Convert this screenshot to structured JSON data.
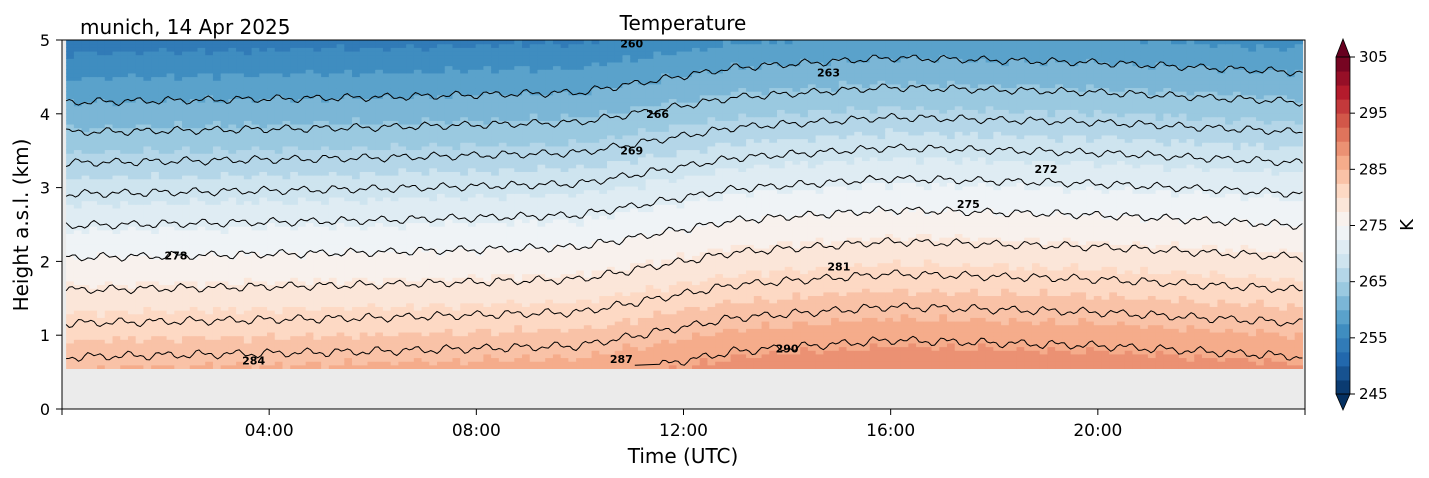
{
  "chart_data": {
    "type": "heatmap",
    "title": "Temperature",
    "subtitle": "munich, 14 Apr 2025",
    "xlabel": "Time (UTC)",
    "ylabel": "Height a.s.l. (km)",
    "xlim_hours": [
      0,
      24
    ],
    "ylim": [
      0,
      5
    ],
    "x_ticks": [
      {
        "hour": 4,
        "label": "04:00"
      },
      {
        "hour": 8,
        "label": "08:00"
      },
      {
        "hour": 12,
        "label": "12:00"
      },
      {
        "hour": 16,
        "label": "16:00"
      },
      {
        "hour": 20,
        "label": "20:00"
      }
    ],
    "y_ticks": [
      0,
      1,
      2,
      3,
      4,
      5
    ],
    "data_bottom_km": 0.55,
    "no_data_color": "#ebebeb",
    "colorbar": {
      "label": "K",
      "min": 245,
      "max": 305,
      "ticks": [
        245,
        255,
        265,
        275,
        285,
        295,
        305
      ],
      "extend": "both",
      "cmap": "RdBu_r"
    },
    "field": {
      "description_units": "K",
      "surface_temp_by_hour": {
        "hours": [
          0,
          6,
          10,
          13,
          16,
          20,
          24
        ],
        "values": [
          285,
          285.5,
          286,
          288.5,
          289.5,
          289,
          288
        ]
      },
      "lapse_rate_K_per_km": 6.4
    },
    "contours": [
      {
        "level": 260,
        "label_hour": 11.0,
        "label_km": 4.95
      },
      {
        "level": 263,
        "label_hour": 14.8,
        "label_km": 4.56
      },
      {
        "level": 266,
        "label_hour": 11.5,
        "label_km": 4.0
      },
      {
        "level": 269,
        "label_hour": 11.0,
        "label_km": 3.5
      },
      {
        "level": 272,
        "label_hour": 19.0,
        "label_km": 3.25
      },
      {
        "level": 275,
        "label_hour": 17.5,
        "label_km": 2.78
      },
      {
        "level": 278,
        "label_hour": 2.2,
        "label_km": 2.08
      },
      {
        "level": 281,
        "label_hour": 15.0,
        "label_km": 1.93
      },
      {
        "level": 284,
        "label_hour": 3.7,
        "label_km": 0.66
      },
      {
        "level": 287,
        "label_hour": 10.8,
        "label_km": 0.68
      },
      {
        "level": 290,
        "label_hour": 14.0,
        "label_km": 0.82
      }
    ]
  }
}
